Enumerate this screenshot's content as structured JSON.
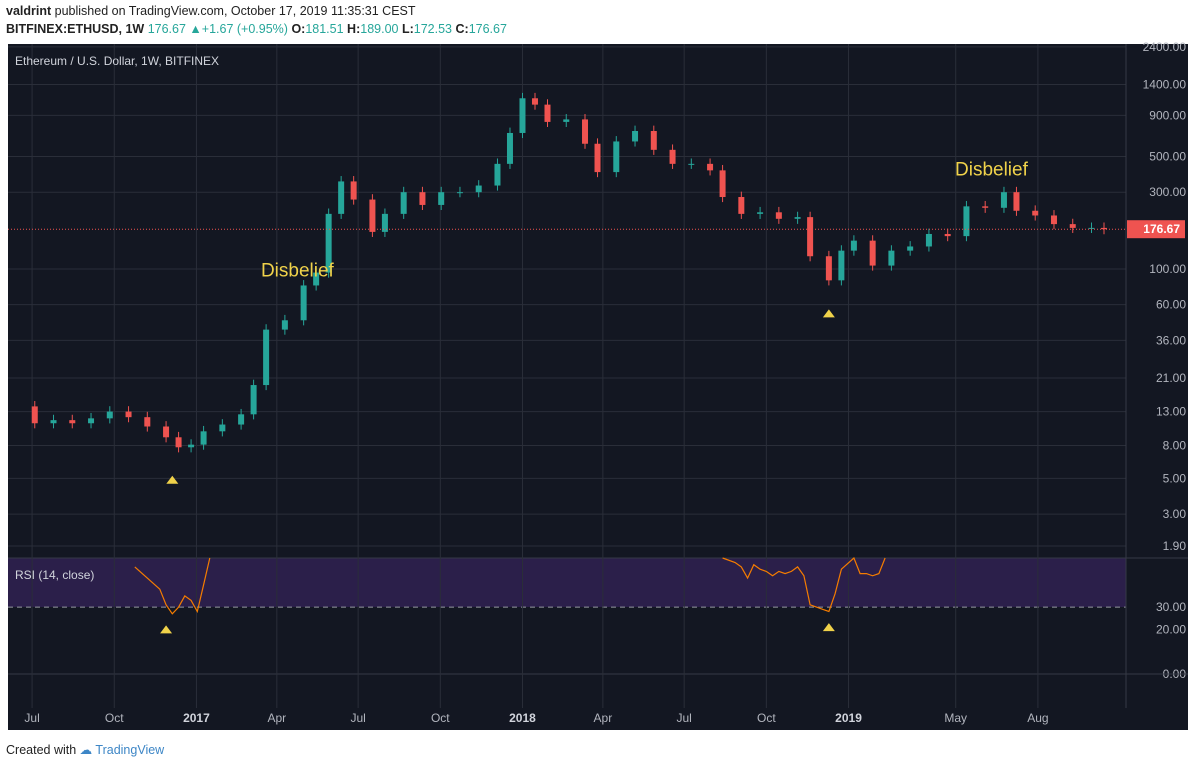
{
  "header": {
    "author": "valdrint",
    "published_text": "published on TradingView.com, October 17, 2019 11:35:31 CEST",
    "symbol": "BITFINEX:ETHUSD, 1W",
    "last": "176.67",
    "change": "+1.67 (+0.95%)",
    "o_label": "O:",
    "o": "181.51",
    "h_label": "H:",
    "h": "189.00",
    "l_label": "L:",
    "l": "172.53",
    "c_label": "C:",
    "c": "176.67"
  },
  "footer": {
    "created_with": "Created with",
    "brand": "TradingView"
  },
  "colors": {
    "up": "#26a69a",
    "down": "#ef5350",
    "bg": "#131722",
    "grid": "#2a2e39",
    "rsi_line": "#f57c00",
    "rsi_band": "#2b1f4a",
    "annotation": "#f0d24a",
    "price_tag": "#ef5350"
  },
  "chart_data": [
    {
      "type": "candlestick",
      "title": "Ethereum / U.S. Dollar, 1W, BITFINEX",
      "y_scale": "log",
      "ylim": [
        1.6,
        2500
      ],
      "y_ticks": [
        "2400.00",
        "1400.00",
        "900.00",
        "500.00",
        "300.00",
        "100.00",
        "60.00",
        "36.00",
        "21.00",
        "13.00",
        "8.00",
        "5.00",
        "3.00",
        "1.90"
      ],
      "last_price_label": "176.67",
      "x_ticks": [
        "Jul",
        "Oct",
        "2017",
        "Apr",
        "Jul",
        "Oct",
        "2018",
        "Apr",
        "Jul",
        "Oct",
        "2019",
        "May",
        "Aug"
      ],
      "x_range": [
        "2016-06-13",
        "2019-10-14"
      ],
      "close_series": [
        [
          "2016-06-13",
          14.0
        ],
        [
          "2016-07-04",
          11.0
        ],
        [
          "2016-07-25",
          11.5
        ],
        [
          "2016-08-15",
          11.0
        ],
        [
          "2016-09-05",
          11.8
        ],
        [
          "2016-09-26",
          13.0
        ],
        [
          "2016-10-17",
          12.0
        ],
        [
          "2016-11-07",
          10.5
        ],
        [
          "2016-11-28",
          9.0
        ],
        [
          "2016-12-12",
          7.8
        ],
        [
          "2016-12-26",
          8.1
        ],
        [
          "2017-01-09",
          9.8
        ],
        [
          "2017-01-30",
          10.8
        ],
        [
          "2017-02-20",
          12.5
        ],
        [
          "2017-03-06",
          19.0
        ],
        [
          "2017-03-20",
          42.0
        ],
        [
          "2017-04-10",
          48.0
        ],
        [
          "2017-05-01",
          79.0
        ],
        [
          "2017-05-15",
          95.0
        ],
        [
          "2017-05-29",
          220.0
        ],
        [
          "2017-06-12",
          350.0
        ],
        [
          "2017-06-26",
          270.0
        ],
        [
          "2017-07-17",
          170.0
        ],
        [
          "2017-07-31",
          220.0
        ],
        [
          "2017-08-21",
          300.0
        ],
        [
          "2017-09-11",
          250.0
        ],
        [
          "2017-10-02",
          300.0
        ],
        [
          "2017-10-23",
          300.0
        ],
        [
          "2017-11-13",
          330.0
        ],
        [
          "2017-12-04",
          450.0
        ],
        [
          "2017-12-18",
          700.0
        ],
        [
          "2018-01-01",
          1150.0
        ],
        [
          "2018-01-15",
          1050.0
        ],
        [
          "2018-01-29",
          820.0
        ],
        [
          "2018-02-19",
          850.0
        ],
        [
          "2018-03-12",
          600.0
        ],
        [
          "2018-03-26",
          400.0
        ],
        [
          "2018-04-16",
          620.0
        ],
        [
          "2018-05-07",
          720.0
        ],
        [
          "2018-05-28",
          550.0
        ],
        [
          "2018-06-18",
          450.0
        ],
        [
          "2018-07-09",
          450.0
        ],
        [
          "2018-07-30",
          410.0
        ],
        [
          "2018-08-13",
          280.0
        ],
        [
          "2018-09-03",
          220.0
        ],
        [
          "2018-09-24",
          225.0
        ],
        [
          "2018-10-15",
          205.0
        ],
        [
          "2018-11-05",
          210.0
        ],
        [
          "2018-11-19",
          120.0
        ],
        [
          "2018-12-10",
          85.0
        ],
        [
          "2018-12-24",
          130.0
        ],
        [
          "2019-01-07",
          150.0
        ],
        [
          "2019-01-28",
          105.0
        ],
        [
          "2019-02-18",
          130.0
        ],
        [
          "2019-03-11",
          138.0
        ],
        [
          "2019-04-01",
          165.0
        ],
        [
          "2019-04-22",
          160.0
        ],
        [
          "2019-05-13",
          245.0
        ],
        [
          "2019-06-03",
          240.0
        ],
        [
          "2019-06-24",
          300.0
        ],
        [
          "2019-07-08",
          230.0
        ],
        [
          "2019-07-29",
          215.0
        ],
        [
          "2019-08-19",
          190.0
        ],
        [
          "2019-09-09",
          180.0
        ],
        [
          "2019-09-30",
          180.0
        ],
        [
          "2019-10-14",
          176.67
        ]
      ],
      "annotations": [
        {
          "text": "Disbelief",
          "date": "2017-04-24",
          "value": 90
        },
        {
          "text": "Disbelief",
          "date": "2019-06-10",
          "value": 380
        }
      ],
      "markers": [
        {
          "shape": "triangle-up",
          "date": "2016-12-05",
          "value": 4.9
        },
        {
          "shape": "triangle-up",
          "date": "2018-12-10",
          "value": 53
        }
      ]
    },
    {
      "type": "line",
      "title": "RSI (14, close)",
      "ylim": [
        0,
        52
      ],
      "y_ticks": [
        "30.00",
        "20.00",
        "0.00"
      ],
      "band": [
        30,
        70
      ],
      "series": [
        {
          "segment": 1,
          "points": [
            [
              "2016-10-24",
              48
            ],
            [
              "2016-11-07",
              43
            ],
            [
              "2016-11-21",
              38
            ],
            [
              "2016-11-28",
              31
            ],
            [
              "2016-12-05",
              27
            ],
            [
              "2016-12-12",
              30
            ],
            [
              "2016-12-19",
              35
            ],
            [
              "2016-12-26",
              33
            ],
            [
              "2017-01-02",
              28
            ],
            [
              "2017-01-09",
              40
            ],
            [
              "2017-01-16",
              52
            ]
          ]
        },
        {
          "segment": 2,
          "points": [
            [
              "2018-08-13",
              52
            ],
            [
              "2018-08-27",
              50
            ],
            [
              "2018-09-03",
              48
            ],
            [
              "2018-09-10",
              43
            ],
            [
              "2018-09-17",
              49
            ],
            [
              "2018-09-24",
              47
            ],
            [
              "2018-10-01",
              46
            ],
            [
              "2018-10-08",
              44
            ],
            [
              "2018-10-15",
              46
            ],
            [
              "2018-10-22",
              45
            ],
            [
              "2018-10-29",
              46
            ],
            [
              "2018-11-05",
              48
            ],
            [
              "2018-11-12",
              44
            ],
            [
              "2018-11-19",
              31
            ],
            [
              "2018-11-26",
              30
            ],
            [
              "2018-12-03",
              29
            ],
            [
              "2018-12-10",
              28
            ],
            [
              "2018-12-17",
              36
            ],
            [
              "2018-12-24",
              47
            ],
            [
              "2019-01-07",
              52
            ],
            [
              "2019-01-14",
              45
            ],
            [
              "2019-01-21",
              45
            ],
            [
              "2019-01-28",
              44
            ],
            [
              "2019-02-04",
              45
            ],
            [
              "2019-02-11",
              52
            ]
          ]
        }
      ],
      "markers": [
        {
          "shape": "triangle-up",
          "date": "2016-11-28",
          "value": 20
        },
        {
          "shape": "triangle-up",
          "date": "2018-12-10",
          "value": 21
        }
      ]
    }
  ]
}
